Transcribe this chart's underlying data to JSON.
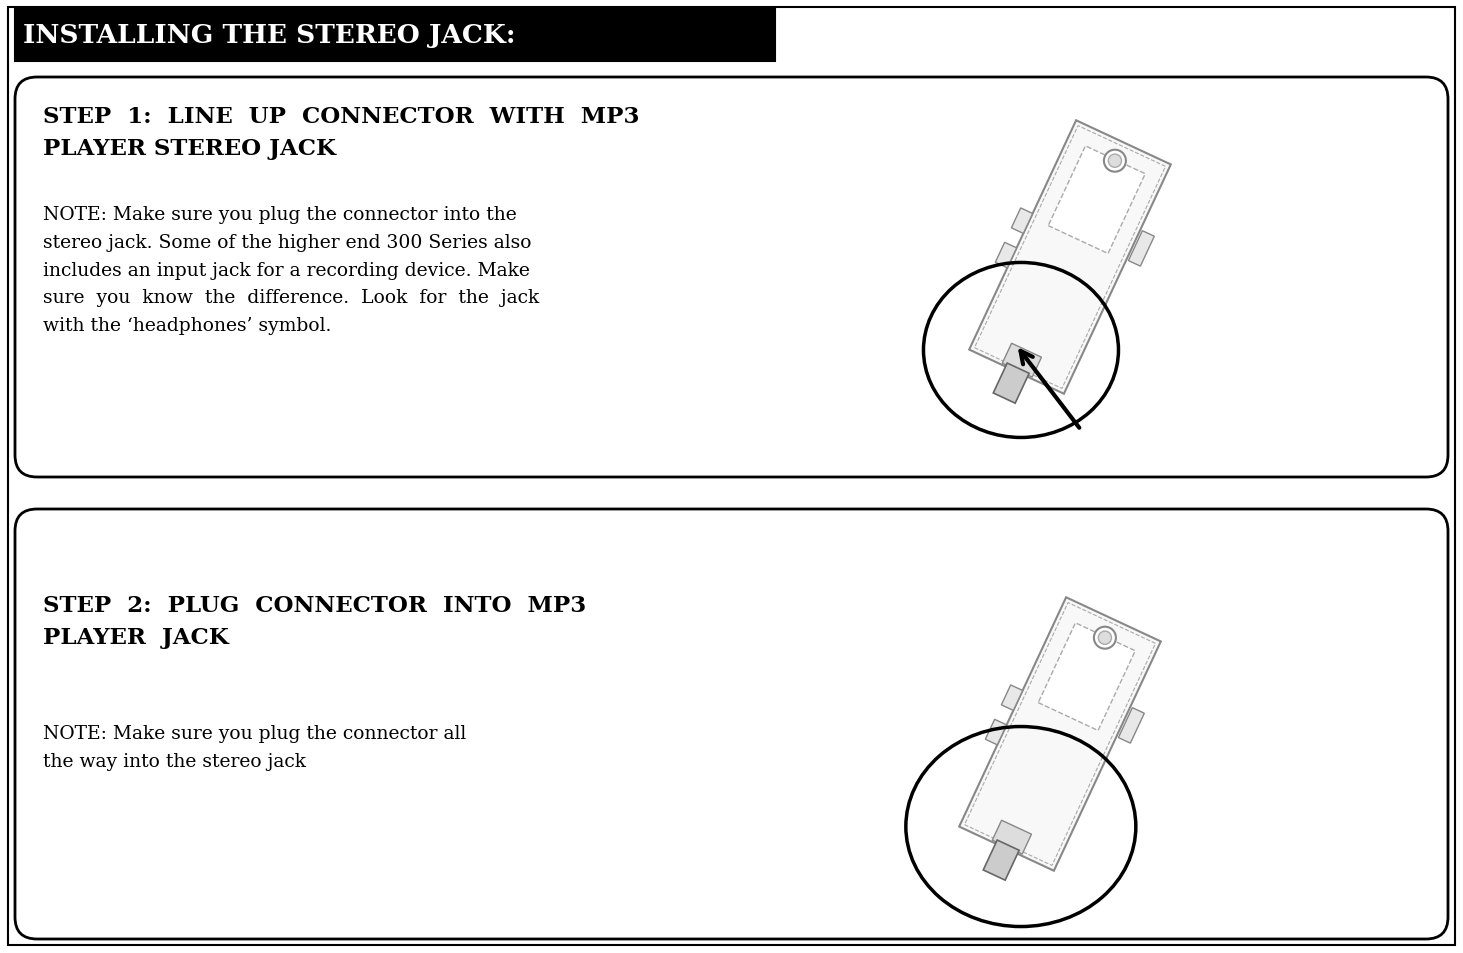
{
  "title": "INSTALLING THE STEREO JACK:",
  "step1_heading_line1": "STEP  1:  LINE  UP  CONNECTOR  WITH  MP3",
  "step1_heading_line2": "PLAYER STEREO JACK",
  "step1_note": "NOTE: Make sure you plug the connector into the\nstereo jack. Some of the higher end 300 Series also\nincludes an input jack for a recording device. Make\nsure  you  know  the  difference.  Look  for  the  jack\nwith the ‘headphones’ symbol.",
  "step2_heading_line1": "STEP  2:  PLUG  CONNECTOR  INTO  MP3",
  "step2_heading_line2": "PLAYER  JACK",
  "step2_note": "NOTE: Make sure you plug the connector all\nthe way into the stereo jack",
  "bg_color": "#ffffff",
  "title_bg": "#000000",
  "title_fg": "#ffffff",
  "border_color": "#000000",
  "text_color": "#000000",
  "device_line_color": "#888888",
  "device_fill": "#f5f5f5"
}
